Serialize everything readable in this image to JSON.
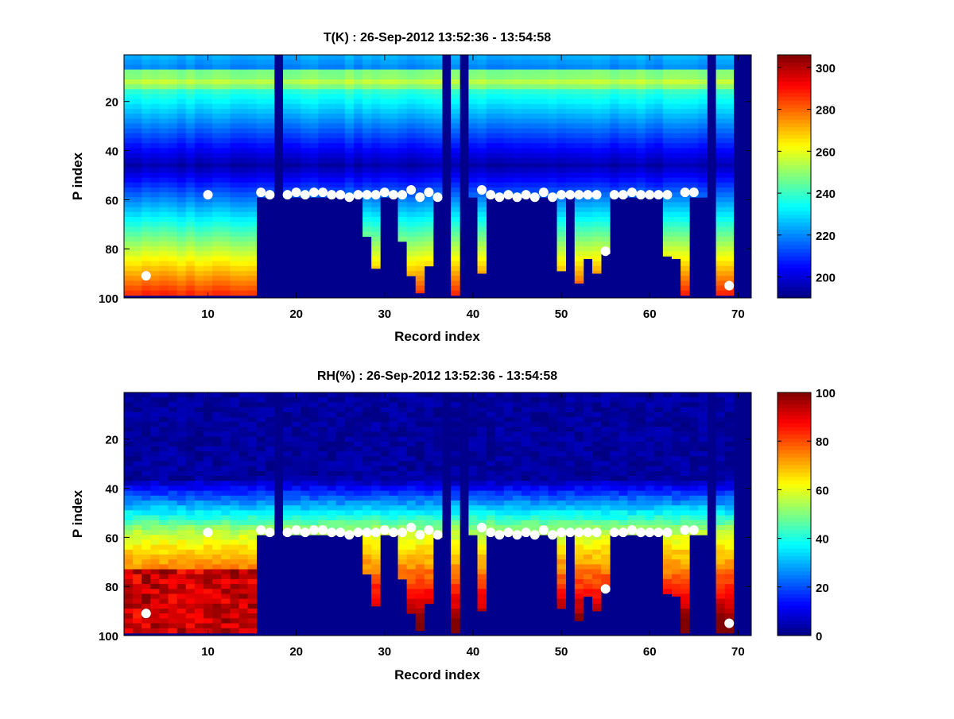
{
  "chart_data": [
    {
      "type": "heatmap",
      "title": "T(K) : 26-Sep-2012 13:52:36 - 13:54:58",
      "xlabel": "Record index",
      "ylabel": "P index",
      "xlim": [
        0.5,
        71.5
      ],
      "ylim": [
        1,
        100
      ],
      "y_reversed": true,
      "xticks": [
        10,
        20,
        30,
        40,
        50,
        60,
        70
      ],
      "yticks": [
        20,
        40,
        60,
        80,
        100
      ],
      "colorbar": {
        "min": 190,
        "max": 306,
        "ticks": [
          200,
          220,
          240,
          260,
          280,
          300
        ]
      },
      "colormap": "jet",
      "field": "temperature"
    },
    {
      "type": "heatmap",
      "title": "RH(%) : 26-Sep-2012 13:52:36 - 13:54:58",
      "xlabel": "Record index",
      "ylabel": "P index",
      "xlim": [
        0.5,
        71.5
      ],
      "ylim": [
        1,
        100
      ],
      "y_reversed": true,
      "xticks": [
        10,
        20,
        30,
        40,
        50,
        60,
        70
      ],
      "yticks": [
        20,
        40,
        60,
        80,
        100
      ],
      "colorbar": {
        "min": 0,
        "max": 100,
        "ticks": [
          0,
          20,
          40,
          60,
          80,
          100
        ]
      },
      "colormap": "jet",
      "field": "humidity"
    }
  ],
  "profile_bottom_index": [
    98,
    98,
    98,
    98,
    98,
    98,
    98,
    98,
    98,
    98,
    98,
    98,
    98,
    98,
    98,
    58,
    58,
    1,
    58,
    58,
    58,
    58,
    58,
    58,
    58,
    58,
    58,
    74,
    87,
    58,
    58,
    76,
    90,
    97,
    86,
    59,
    1,
    98,
    1,
    58,
    89,
    58,
    58,
    58,
    58,
    58,
    58,
    58,
    58,
    88,
    58,
    93,
    83,
    89,
    81,
    58,
    58,
    58,
    58,
    58,
    58,
    82,
    83,
    98,
    58,
    58,
    1,
    98,
    98,
    1,
    1
  ],
  "markers": [
    [
      3,
      91
    ],
    [
      10,
      58
    ],
    [
      16,
      57
    ],
    [
      17,
      58
    ],
    [
      19,
      58
    ],
    [
      20,
      57
    ],
    [
      21,
      58
    ],
    [
      22,
      57
    ],
    [
      23,
      57
    ],
    [
      24,
      58
    ],
    [
      25,
      58
    ],
    [
      26,
      59
    ],
    [
      27,
      58
    ],
    [
      28,
      58
    ],
    [
      29,
      58
    ],
    [
      30,
      57
    ],
    [
      31,
      58
    ],
    [
      32,
      58
    ],
    [
      33,
      56
    ],
    [
      34,
      59
    ],
    [
      35,
      57
    ],
    [
      36,
      59
    ],
    [
      41,
      56
    ],
    [
      42,
      58
    ],
    [
      43,
      59
    ],
    [
      44,
      58
    ],
    [
      45,
      59
    ],
    [
      46,
      58
    ],
    [
      47,
      59
    ],
    [
      48,
      57
    ],
    [
      49,
      59
    ],
    [
      50,
      58
    ],
    [
      51,
      58
    ],
    [
      52,
      58
    ],
    [
      53,
      58
    ],
    [
      54,
      58
    ],
    [
      55,
      81
    ],
    [
      56,
      58
    ],
    [
      57,
      58
    ],
    [
      58,
      57
    ],
    [
      59,
      58
    ],
    [
      60,
      58
    ],
    [
      61,
      58
    ],
    [
      62,
      58
    ],
    [
      64,
      57
    ],
    [
      65,
      57
    ],
    [
      69,
      95
    ]
  ]
}
